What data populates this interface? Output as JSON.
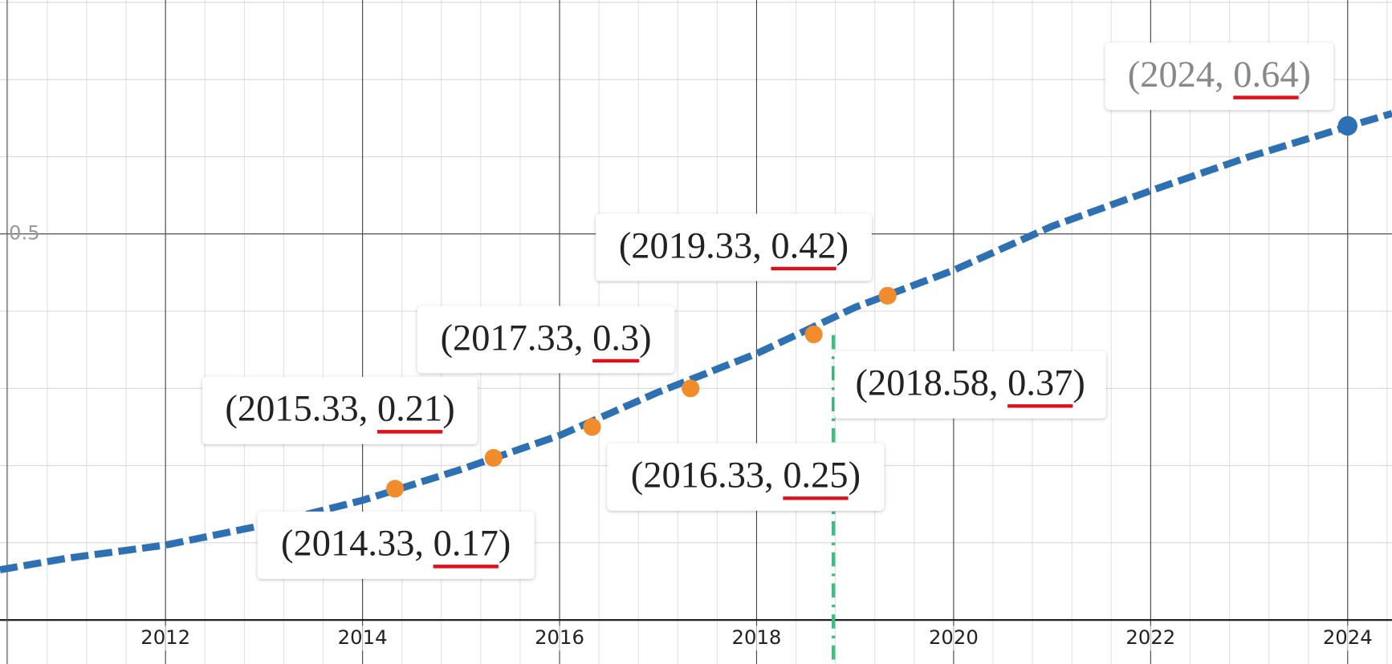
{
  "chart_data": {
    "type": "line",
    "xlim": [
      2010.32,
      2024.45
    ],
    "ylim": [
      -0.057,
      0.803
    ],
    "xticks": [
      2012,
      2014,
      2016,
      2018,
      2020,
      2022,
      2024
    ],
    "yticks": [
      0.5
    ],
    "grid": true,
    "series": [
      {
        "color": "#2d70b3",
        "x": [
          2010.32,
          2011,
          2012,
          2013,
          2014,
          2015,
          2016,
          2017,
          2018,
          2019,
          2020,
          2021,
          2022,
          2023,
          2024,
          2024.45
        ],
        "values": [
          0.065,
          0.08,
          0.097,
          0.123,
          0.155,
          0.195,
          0.239,
          0.295,
          0.345,
          0.405,
          0.453,
          0.51,
          0.556,
          0.6,
          0.639,
          0.656
        ]
      },
      {
        "color": "#f28b2b",
        "x": [
          2014.33,
          2015.33,
          2016.33,
          2017.33,
          2018.58,
          2019.33
        ],
        "values": [
          0.17,
          0.21,
          0.25,
          0.3,
          0.37,
          0.42
        ],
        "value_labels": [
          "(2014.33, 0.17)",
          "(2015.33, 0.21)",
          "(2016.33, 0.25)",
          "(2017.33, 0.3)",
          "(2018.58, 0.37)",
          "(2019.33, 0.42)"
        ]
      },
      {
        "color": "#2d70b3",
        "x": [
          2024
        ],
        "values": [
          0.64
        ],
        "value_labels": [
          "(2024, 0.64)"
        ]
      }
    ],
    "vline": {
      "x": 2018.78,
      "color": "#3fbf7f"
    }
  }
}
